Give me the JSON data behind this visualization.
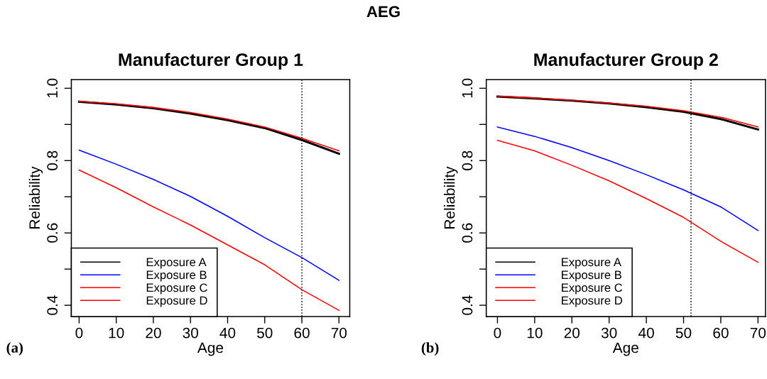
{
  "chart_data": [
    {
      "type": "line",
      "title": "Manufacturer Group 1",
      "xlabel": "Age",
      "ylabel": "Reliability",
      "x": [
        0,
        10,
        20,
        30,
        40,
        50,
        60,
        70
      ],
      "series": [
        {
          "name": "Exposure A",
          "color": "#000000",
          "values": [
            0.963,
            0.955,
            0.945,
            0.93,
            0.912,
            0.89,
            0.857,
            0.819
          ]
        },
        {
          "name": "Exposure B",
          "color": "#0000ff",
          "values": [
            0.829,
            0.79,
            0.748,
            0.701,
            0.646,
            0.587,
            0.532,
            0.469
          ]
        },
        {
          "name": "Exposure C",
          "color": "#ff0000",
          "values": [
            0.964,
            0.957,
            0.947,
            0.933,
            0.915,
            0.893,
            0.862,
            0.827
          ]
        },
        {
          "name": "Exposure D",
          "color": "#ff0000",
          "values": [
            0.774,
            0.725,
            0.672,
            0.622,
            0.567,
            0.512,
            0.443,
            0.386
          ]
        }
      ],
      "xlim": [
        -2.1,
        72.9
      ],
      "xticks": [
        0,
        10,
        20,
        30,
        40,
        50,
        60,
        70
      ],
      "ylim": [
        0.369,
        1.024
      ],
      "yticks": [
        0.4,
        {
          "value": 0.5,
          "label": null
        },
        0.6,
        {
          "value": 0.7,
          "label": null
        },
        0.8,
        {
          "value": 0.9,
          "label": null
        },
        {
          "value": 1.0,
          "label": "1.0"
        }
      ],
      "ref_lines": [
        {
          "axis": "x",
          "value": 60,
          "label": null,
          "color": "#000000",
          "line_style": "dotted"
        }
      ],
      "legend": "bottom left",
      "grid": false,
      "marker": "none",
      "line_style": "solid",
      "annotations": [
        "AEG",
        "(a)"
      ]
    },
    {
      "type": "line",
      "title": "Manufacturer Group 2",
      "xlabel": "Age",
      "ylabel": "Reliability",
      "x": [
        0,
        10,
        20,
        30,
        40,
        50,
        60,
        70
      ],
      "series": [
        {
          "name": "Exposure A",
          "color": "#000000",
          "values": [
            0.977,
            0.972,
            0.966,
            0.958,
            0.948,
            0.935,
            0.915,
            0.886
          ]
        },
        {
          "name": "Exposure B",
          "color": "#0000ff",
          "values": [
            0.893,
            0.867,
            0.836,
            0.8,
            0.761,
            0.719,
            0.672,
            0.607
          ]
        },
        {
          "name": "Exposure C",
          "color": "#ff0000",
          "values": [
            0.978,
            0.973,
            0.967,
            0.959,
            0.95,
            0.938,
            0.92,
            0.893
          ]
        },
        {
          "name": "Exposure D",
          "color": "#ff0000",
          "values": [
            0.856,
            0.827,
            0.787,
            0.744,
            0.695,
            0.643,
            0.577,
            0.519
          ]
        }
      ],
      "xlim": [
        -3,
        72
      ],
      "xticks": [
        0,
        10,
        20,
        30,
        40,
        50,
        60,
        70
      ],
      "ylim": [
        0.369,
        1.024
      ],
      "yticks": [
        0.4,
        {
          "value": 0.5,
          "label": null
        },
        0.6,
        {
          "value": 0.7,
          "label": null
        },
        0.8,
        {
          "value": 0.9,
          "label": null
        },
        {
          "value": 1.0,
          "label": "1.0"
        }
      ],
      "ref_lines": [
        {
          "axis": "x",
          "value": 52,
          "label": null,
          "color": "#000000",
          "line_style": "dotted"
        }
      ],
      "legend": "bottom left",
      "grid": false,
      "marker": "none",
      "line_style": "solid",
      "annotations": [
        "(b)"
      ]
    }
  ]
}
